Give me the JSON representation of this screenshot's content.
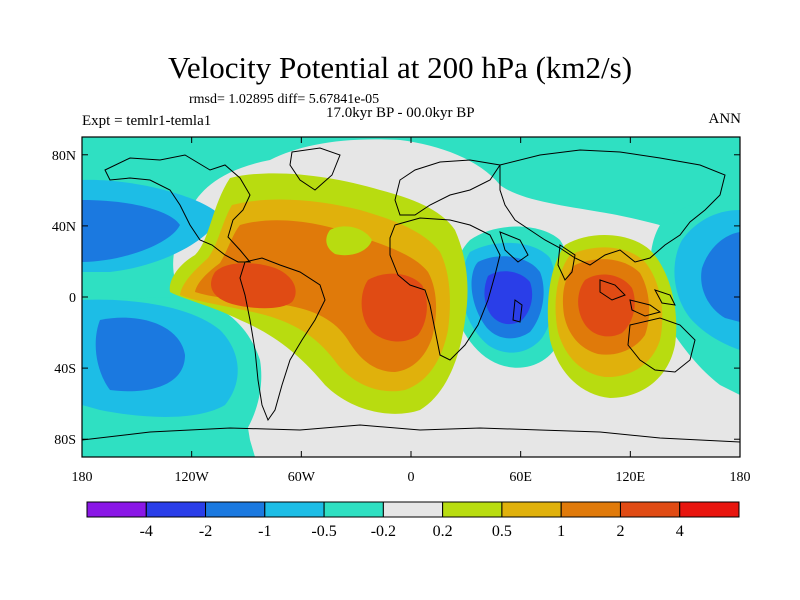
{
  "title": "Velocity Potential at 200 hPa (km2/s)",
  "stats": "rmsd= 1.02895 diff= 5.67841e-05",
  "period": "17.0kyr BP - 00.0kyr BP",
  "experiment": "Expt = temlr1-temla1",
  "season": "ANN",
  "map": {
    "variable": "200 hPa velocity potential difference",
    "lon_range": [
      -180,
      180
    ],
    "lat_range": [
      -90,
      90
    ],
    "x_ticks": [
      {
        "value": -180,
        "label": "180"
      },
      {
        "value": -120,
        "label": "120W"
      },
      {
        "value": -60,
        "label": "60W"
      },
      {
        "value": 0,
        "label": "0"
      },
      {
        "value": 60,
        "label": "60E"
      },
      {
        "value": 120,
        "label": "120E"
      },
      {
        "value": 180,
        "label": "180"
      }
    ],
    "y_ticks": [
      {
        "value": 80,
        "label": "80N"
      },
      {
        "value": 40,
        "label": "40N"
      },
      {
        "value": 0,
        "label": "0"
      },
      {
        "value": -40,
        "label": "40S"
      },
      {
        "value": -80,
        "label": "80S"
      }
    ],
    "regions": [
      {
        "name": "equatorial-west-pacific-minimum",
        "center_lon": -140,
        "center_lat": 10,
        "level": "-1"
      },
      {
        "name": "south-pacific-minimum",
        "center_lon": -150,
        "center_lat": -30,
        "level": "-1"
      },
      {
        "name": "atlantic-americas-maximum",
        "center_lon": -60,
        "center_lat": 0,
        "level": "2"
      },
      {
        "name": "tropical-atlantic-maximum",
        "center_lon": -10,
        "center_lat": -5,
        "level": "4"
      },
      {
        "name": "indian-ocean-minimum",
        "center_lon": 50,
        "center_lat": -5,
        "level": "-4"
      },
      {
        "name": "maritime-continent-maximum",
        "center_lon": 100,
        "center_lat": -5,
        "level": "4"
      },
      {
        "name": "east-asia-pacific-minimum",
        "center_lon": 165,
        "center_lat": 5,
        "level": "-1"
      }
    ]
  },
  "colorbar": {
    "colors": [
      "#8a17e6",
      "#2a3ee8",
      "#1b79e0",
      "#1dbde6",
      "#2fe0c2",
      "#e6e6e6",
      "#b8dc10",
      "#e0b10c",
      "#e07a0a",
      "#e04b14",
      "#e8150e"
    ],
    "labels": [
      "-4",
      "-2",
      "-1",
      "-0.5",
      "-0.2",
      "0.2",
      "0.5",
      "1",
      "2",
      "4"
    ]
  }
}
